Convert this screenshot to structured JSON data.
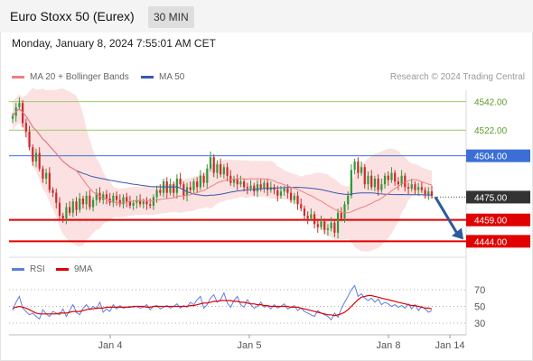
{
  "header": {
    "title": "Euro Stoxx 50 (Eurex)",
    "timeframe": "30 MIN",
    "timestamp": "Monday, January 8, 2024 7:55:01 AM CET"
  },
  "legend": {
    "ma20": "MA 20 + Bollinger Bands",
    "ma50": "MA 50",
    "rsi": "RSI",
    "ma9": "9MA",
    "credit": "Research © 2024 Trading Central"
  },
  "colors": {
    "up": "#2e9a3a",
    "down": "#cc2a2a",
    "ma20": "#f08080",
    "ma50": "#3a57b0",
    "band": "#fad7d7",
    "resist": "#9ccc65",
    "pivot": "#3b6fd6",
    "support": "#e00000",
    "current": "#333333",
    "arrow": "#2c5aa0",
    "rsiLine": "#5b7fe0",
    "ma9Line": "#e00000"
  },
  "chart_data": [
    {
      "type": "candlestick",
      "title": "Euro Stoxx 50 (Eurex)",
      "ylim": [
        4436,
        4550
      ],
      "x_ticks": [
        "Jan 4",
        "Jan 5",
        "Jan 8",
        "Jan 14"
      ],
      "current_price": "4475.00",
      "levels": [
        {
          "value": 4542,
          "label": "4542.00",
          "kind": "resistance"
        },
        {
          "value": 4522,
          "label": "4522.00",
          "kind": "resistance"
        },
        {
          "value": 4504,
          "label": "4504.00",
          "kind": "pivot"
        },
        {
          "value": 4459,
          "label": "4459.00",
          "kind": "support"
        },
        {
          "value": 4444,
          "label": "4444.00",
          "kind": "support"
        }
      ],
      "forecast": {
        "from": 4475,
        "to": 4444
      },
      "close": [
        4532,
        4538,
        4541,
        4527,
        4521,
        4510,
        4500,
        4506,
        4495,
        4488,
        4492,
        4480,
        4478,
        4471,
        4462,
        4460,
        4468,
        4464,
        4472,
        4466,
        4474,
        4470,
        4476,
        4468,
        4473,
        4478,
        4473,
        4477,
        4474,
        4471,
        4476,
        4473,
        4470,
        4475,
        4472,
        4469,
        4471,
        4473,
        4470,
        4472,
        4470,
        4469,
        4475,
        4480,
        4478,
        4486,
        4478,
        4484,
        4478,
        4488,
        4484,
        4476,
        4482,
        4480,
        4486,
        4482,
        4490,
        4485,
        4495,
        4503,
        4492,
        4498,
        4491,
        4496,
        4490,
        4485,
        4488,
        4484,
        4486,
        4482,
        4481,
        4483,
        4479,
        4484,
        4481,
        4485,
        4480,
        4482,
        4480,
        4476,
        4479,
        4481,
        4478,
        4473,
        4476,
        4470,
        4467,
        4462,
        4460,
        4463,
        4456,
        4454,
        4458,
        4452,
        4453,
        4457,
        4450,
        4464,
        4460,
        4470,
        4476,
        4494,
        4500,
        4492,
        4496,
        4484,
        4490,
        4482,
        4488,
        4480,
        4484,
        4490,
        4487,
        4492,
        4486,
        4484,
        4490,
        4482,
        4481,
        4484,
        4480,
        4482,
        4480,
        4477,
        4479,
        4476
      ],
      "rsi": [
        45,
        55,
        62,
        48,
        44,
        40,
        42,
        38,
        35,
        46,
        41,
        38,
        44,
        42,
        40,
        47,
        38,
        45,
        52,
        43,
        40,
        48,
        52,
        46,
        50,
        47,
        55,
        43,
        47,
        44,
        52,
        47,
        51,
        48,
        49,
        50,
        49,
        50,
        48,
        49,
        52,
        46,
        50,
        51,
        47,
        49,
        51,
        48,
        50,
        53,
        48,
        51,
        49,
        55,
        52,
        58,
        62,
        48,
        52,
        60,
        64,
        55,
        58,
        66,
        54,
        49,
        57,
        62,
        52,
        49,
        58,
        52,
        48,
        50,
        55,
        49,
        51,
        47,
        52,
        48,
        50,
        53,
        47,
        49,
        51,
        45,
        48,
        44,
        42,
        40,
        38,
        45,
        42,
        40,
        38,
        34,
        42,
        37,
        47,
        55,
        62,
        70,
        75,
        62,
        65,
        60,
        57,
        60,
        55,
        59,
        52,
        55,
        53,
        50,
        52,
        49,
        51,
        48,
        53,
        47,
        52,
        45,
        50,
        47,
        43,
        45
      ],
      "ma9": [
        48,
        49,
        50,
        49,
        48,
        46,
        44,
        42,
        41,
        41,
        41,
        41,
        41,
        41,
        42,
        42,
        42,
        43,
        44,
        44,
        44,
        45,
        46,
        47,
        47,
        48,
        48,
        48,
        49,
        49,
        49,
        49,
        49,
        49,
        49,
        49,
        50,
        50,
        50,
        50,
        49,
        49,
        50,
        50,
        50,
        50,
        50,
        50,
        50,
        50,
        50,
        50,
        50,
        51,
        51,
        52,
        53,
        54,
        54,
        55,
        56,
        56,
        57,
        57,
        57,
        57,
        56,
        56,
        55,
        55,
        54,
        53,
        53,
        52,
        52,
        51,
        51,
        50,
        50,
        50,
        50,
        50,
        50,
        49,
        49,
        49,
        48,
        47,
        46,
        45,
        44,
        43,
        42,
        41,
        40,
        40,
        39,
        40,
        41,
        43,
        46,
        50,
        54,
        58,
        61,
        62,
        63,
        63,
        62,
        61,
        60,
        59,
        58,
        57,
        56,
        55,
        54,
        53,
        52,
        51,
        51,
        50,
        49,
        48,
        48,
        47
      ],
      "rsi_levels": [
        "70",
        "50",
        "30"
      ]
    }
  ]
}
